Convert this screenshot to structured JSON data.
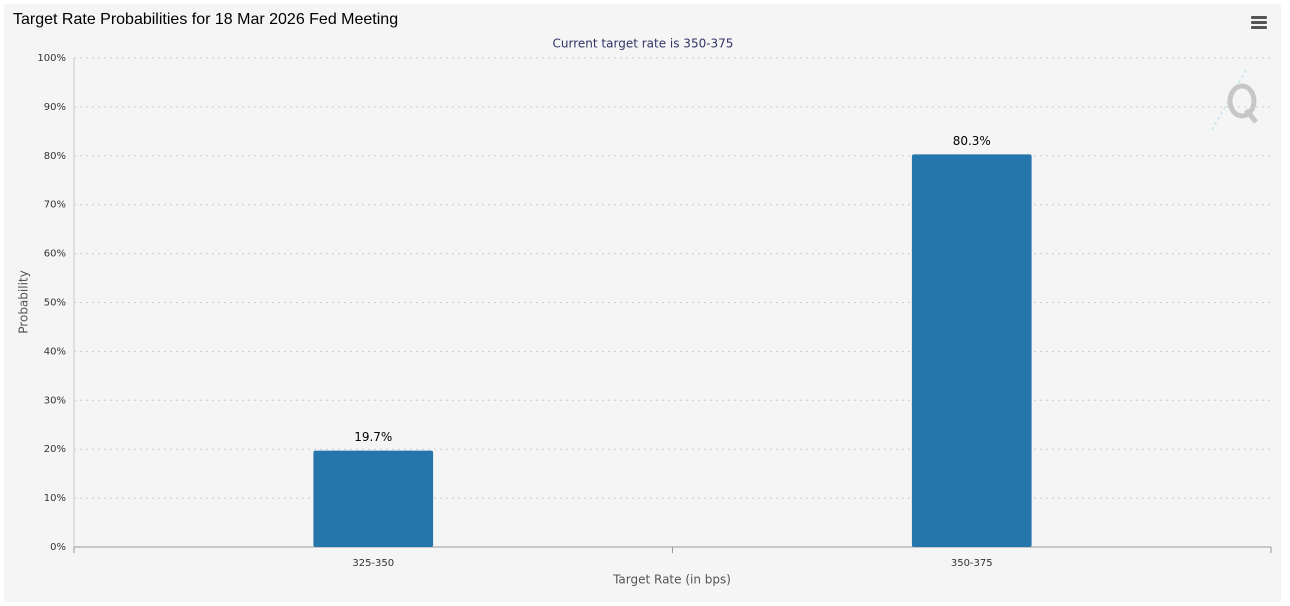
{
  "chart_data": {
    "type": "bar",
    "title": "Target Rate Probabilities for 18 Mar 2026 Fed Meeting",
    "subtitle": "Current target rate is 350-375",
    "x_label": "Target Rate (in bps)",
    "y_label": "Probability",
    "categories": [
      "325-350",
      "350-375"
    ],
    "values": [
      19.7,
      80.3
    ],
    "value_labels": [
      "19.7%",
      "80.3%"
    ],
    "color": "#2576ad",
    "ylim": [
      0,
      100
    ],
    "yticks": [
      {
        "value": 0,
        "label": "0%"
      },
      {
        "value": 10,
        "label": "10%"
      },
      {
        "value": 20,
        "label": "20%"
      },
      {
        "value": 30,
        "label": "30%"
      },
      {
        "value": 40,
        "label": "40%"
      },
      {
        "value": 50,
        "label": "50%"
      },
      {
        "value": 60,
        "label": "60%"
      },
      {
        "value": 70,
        "label": "70%"
      },
      {
        "value": 80,
        "label": "80%"
      },
      {
        "value": 90,
        "label": "90%"
      },
      {
        "value": 100,
        "label": "100%"
      }
    ],
    "grid": true
  }
}
